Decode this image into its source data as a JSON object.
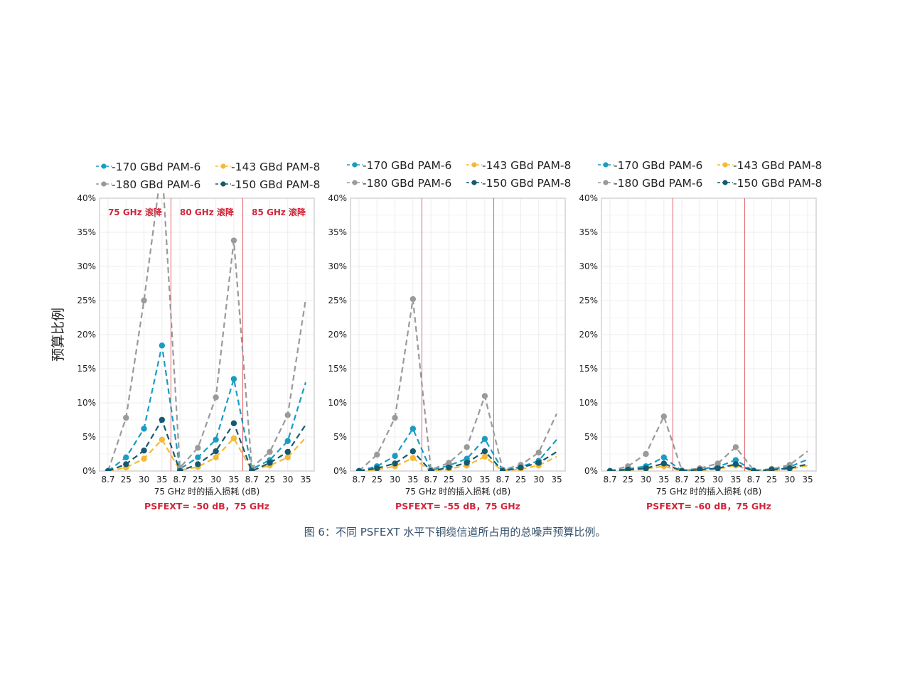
{
  "figure": {
    "ylabel": "预算比例",
    "caption": "图 6：不同 PSFEXT 水平下铜缆信道所占用的总噪声预算比例。"
  },
  "chart_data": [
    {
      "type": "line",
      "subtitle": "PSFEXT= -50 dB，75 GHz",
      "xlabel": "75 GHz 时的插入损耗 (dB)",
      "ylabel": "预算比例",
      "ylim": [
        0,
        40
      ],
      "yticks": [
        "0%",
        "5%",
        "10%",
        "15%",
        "20%",
        "25%",
        "30%",
        "35%",
        "40%"
      ],
      "categories": [
        "8.7",
        "25",
        "30",
        "35",
        "8.7",
        "25",
        "30",
        "35",
        "8.7",
        "25",
        "30",
        "35"
      ],
      "groups": [
        "75 GHz 滚降",
        "80 GHz 滚降",
        "85 GHz 滚降"
      ],
      "grid": true,
      "legend_position": "top",
      "series": [
        {
          "name": "170 GBd PAM-6",
          "color": "#1a9cc3",
          "values": [
            0,
            2.0,
            6.2,
            18.4,
            0.3,
            2.0,
            4.6,
            13.5,
            0.3,
            1.6,
            4.4,
            13.0
          ]
        },
        {
          "name": "143 GBd PAM-8",
          "color": "#f5b935",
          "values": [
            0,
            0.5,
            1.8,
            4.6,
            0.1,
            0.6,
            2.0,
            4.8,
            0.1,
            0.8,
            2.0,
            4.9
          ]
        },
        {
          "name": "180 GBd PAM-6",
          "color": "#9a9a9a",
          "values": [
            0,
            7.8,
            25.0,
            45.0,
            0.5,
            3.4,
            10.8,
            33.8,
            0.5,
            2.8,
            8.2,
            25.2
          ]
        },
        {
          "name": "150 GBd PAM-8",
          "color": "#155a70",
          "values": [
            0,
            1.0,
            3.0,
            7.5,
            0.0,
            1.0,
            2.9,
            7.0,
            0.0,
            1.2,
            2.8,
            6.8
          ]
        }
      ]
    },
    {
      "type": "line",
      "subtitle": "PSFEXT= -55 dB，75 GHz",
      "xlabel": "75 GHz 时的插入损耗 (dB)",
      "ylim": [
        0,
        40
      ],
      "yticks": [
        "0%",
        "5%",
        "10%",
        "15%",
        "20%",
        "25%",
        "30%",
        "35%",
        "40%"
      ],
      "categories": [
        "8.7",
        "25",
        "30",
        "35",
        "8.7",
        "25",
        "30",
        "35",
        "8.7",
        "25",
        "30",
        "35"
      ],
      "grid": true,
      "legend_position": "top",
      "series": [
        {
          "name": "170 GBd PAM-6",
          "color": "#1a9cc3",
          "values": [
            0,
            0.7,
            2.2,
            6.2,
            0.1,
            0.8,
            1.8,
            4.7,
            0.1,
            0.6,
            1.5,
            4.6
          ]
        },
        {
          "name": "143 GBd PAM-8",
          "color": "#f5b935",
          "values": [
            0,
            0.2,
            0.7,
            1.9,
            0.0,
            0.3,
            0.8,
            2.1,
            0.0,
            0.3,
            0.8,
            2.1
          ]
        },
        {
          "name": "180 GBd PAM-6",
          "color": "#9a9a9a",
          "values": [
            0,
            2.4,
            7.8,
            25.2,
            0.2,
            1.2,
            3.5,
            11.0,
            0.2,
            0.9,
            2.7,
            8.4
          ]
        },
        {
          "name": "150 GBd PAM-8",
          "color": "#155a70",
          "values": [
            0,
            0.4,
            1.1,
            2.9,
            0.0,
            0.5,
            1.2,
            2.9,
            0.0,
            0.5,
            1.2,
            2.8
          ]
        }
      ]
    },
    {
      "type": "line",
      "subtitle": "PSFEXT= -60 dB，75 GHz",
      "xlabel": "75 GHz 时的插入损耗 (dB)",
      "ylim": [
        0,
        40
      ],
      "yticks": [
        "0%",
        "5%",
        "10%",
        "15%",
        "20%",
        "25%",
        "30%",
        "35%",
        "40%"
      ],
      "categories": [
        "8.7",
        "25",
        "30",
        "35",
        "8.7",
        "25",
        "30",
        "35",
        "8.7",
        "25",
        "30",
        "35"
      ],
      "grid": true,
      "legend_position": "top",
      "series": [
        {
          "name": "170 GBd PAM-6",
          "color": "#1a9cc3",
          "values": [
            0,
            0.3,
            0.7,
            2.0,
            0.0,
            0.3,
            0.6,
            1.6,
            0.0,
            0.3,
            0.6,
            1.7
          ]
        },
        {
          "name": "143 GBd PAM-8",
          "color": "#f5b935",
          "values": [
            0,
            0.1,
            0.3,
            0.7,
            0.0,
            0.1,
            0.3,
            0.8,
            0.0,
            0.1,
            0.3,
            0.8
          ]
        },
        {
          "name": "180 GBd PAM-6",
          "color": "#9a9a9a",
          "values": [
            0,
            0.7,
            2.5,
            8.0,
            0.1,
            0.4,
            1.1,
            3.5,
            0.1,
            0.3,
            0.9,
            2.9
          ]
        },
        {
          "name": "150 GBd PAM-8",
          "color": "#155a70",
          "values": [
            0,
            0.2,
            0.4,
            1.1,
            0.0,
            0.2,
            0.4,
            1.0,
            0.0,
            0.2,
            0.4,
            1.0
          ]
        }
      ]
    }
  ]
}
